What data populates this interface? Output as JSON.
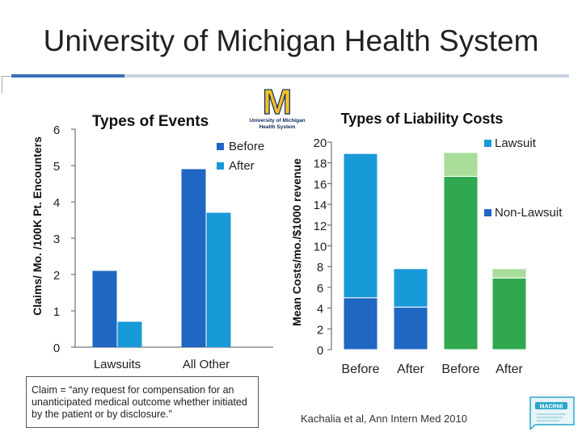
{
  "slide": {
    "title": "University of Michigan Health System",
    "claim_definition": "Claim = “any request for compensation for an unanticipated medical outcome whether initiated by the patient or by disclosure.”",
    "citation": "Kachalia et al, Ann Intern Med 2010",
    "logo_text_line1": "University of Michigan",
    "logo_text_line2": "Health System",
    "logo_letter": "M",
    "logo2_text": "MACRMI"
  },
  "colors": {
    "before": "#1f67c2",
    "after": "#199ad8",
    "non_lawsuit_after": "#2fa84f",
    "lawsuit_after": "#a9dd9a",
    "rule": "#c9d2e0",
    "accent": "#3b6fb6",
    "maize": "#f2c029",
    "navy": "#0b2a5b"
  },
  "chart_data": [
    {
      "type": "bar",
      "title": "Types of Events",
      "xlabel": "",
      "ylabel": "Claims/ Mo. /100K Pt. Encounters",
      "categories": [
        "Lawsuits",
        "All Other"
      ],
      "series": [
        {
          "name": "Before",
          "values": [
            2.1,
            4.9
          ]
        },
        {
          "name": "After",
          "values": [
            0.7,
            3.7
          ]
        }
      ],
      "ylim": [
        0,
        6
      ],
      "yticks": [
        "0",
        "1",
        "2",
        "3",
        "4",
        "5",
        "6"
      ],
      "legend": "top-right"
    },
    {
      "type": "bar",
      "stacked": true,
      "title": "Types of Liability Costs",
      "xlabel": "",
      "ylabel": "Mean Costs/mo./$1000 revenue",
      "categories": [
        "Before",
        "After",
        "Before",
        "After"
      ],
      "series": [
        {
          "name": "Non-Lawsuit",
          "values": [
            5.0,
            4.1,
            16.7,
            6.9
          ]
        },
        {
          "name": "Lawsuit",
          "values": [
            13.9,
            3.7,
            2.3,
            0.9
          ]
        }
      ],
      "ylim": [
        0,
        20
      ],
      "yticks": [
        "0",
        "2",
        "4",
        "6",
        "8",
        "10",
        "12",
        "14",
        "16",
        "18",
        "20"
      ],
      "legend": [
        "Lawsuit",
        "Non-Lawsuit"
      ]
    }
  ]
}
